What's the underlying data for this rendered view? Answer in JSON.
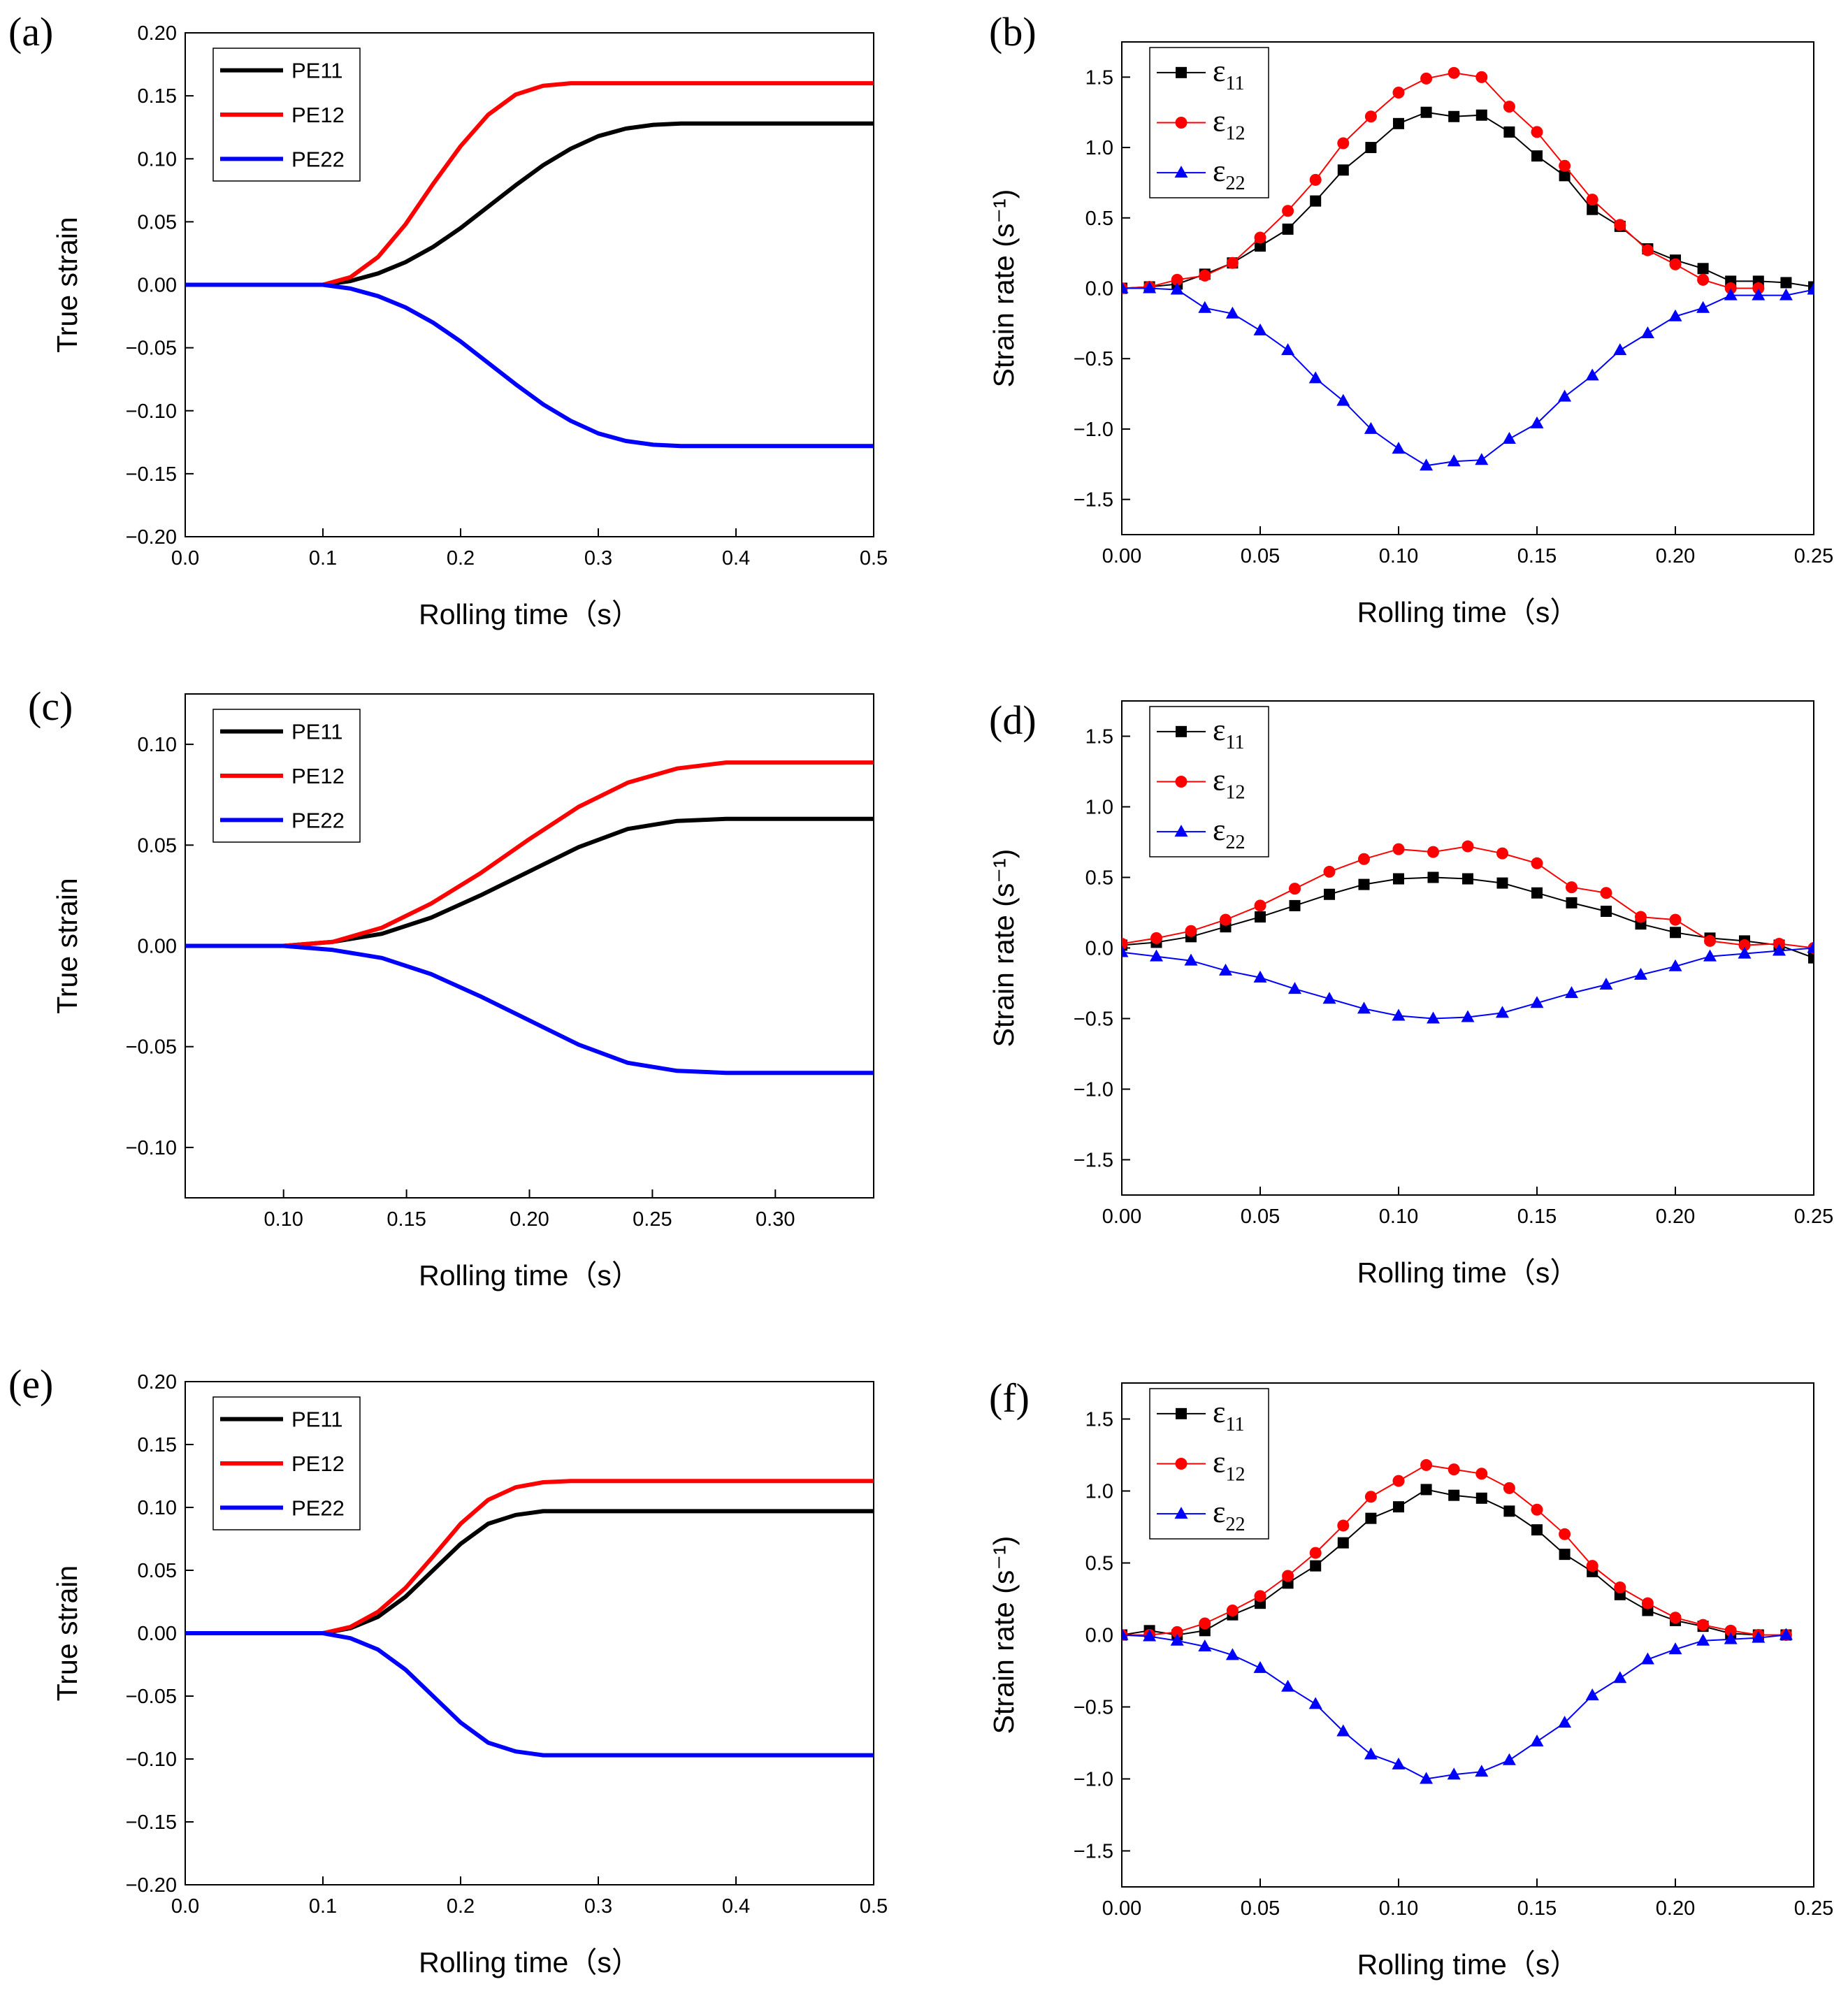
{
  "colors": {
    "e11": "#000000",
    "e12": "#ff0000",
    "e22": "#0000ff"
  },
  "chart_data": [
    {
      "panel": "(a)",
      "type": "line",
      "xlabel": "Rolling time（s）",
      "ylabel": "True strain",
      "xlim": [
        0,
        0.5
      ],
      "ylim": [
        -0.2,
        0.2
      ],
      "xticks": [
        "0.0",
        "0.1",
        "0.2",
        "0.3",
        "0.4",
        "0.5"
      ],
      "yticks": [
        "−0.20",
        "−0.15",
        "−0.10",
        "−0.05",
        "0.00",
        "0.05",
        "0.10",
        "0.15",
        "0.20"
      ],
      "legend": "top-left",
      "series": [
        {
          "name": "PE11",
          "color_key": "e11",
          "x": [
            0,
            0.1,
            0.12,
            0.14,
            0.16,
            0.18,
            0.2,
            0.22,
            0.24,
            0.26,
            0.28,
            0.3,
            0.32,
            0.34,
            0.36,
            0.5
          ],
          "values": [
            0,
            0,
            0.003,
            0.009,
            0.018,
            0.03,
            0.045,
            0.062,
            0.079,
            0.095,
            0.108,
            0.118,
            0.124,
            0.127,
            0.128,
            0.128
          ]
        },
        {
          "name": "PE12",
          "color_key": "e12",
          "x": [
            0,
            0.1,
            0.12,
            0.14,
            0.16,
            0.18,
            0.2,
            0.22,
            0.24,
            0.26,
            0.28,
            0.3,
            0.32,
            0.5
          ],
          "values": [
            0,
            0,
            0.006,
            0.022,
            0.048,
            0.08,
            0.11,
            0.135,
            0.151,
            0.158,
            0.16,
            0.16,
            0.16,
            0.16
          ]
        },
        {
          "name": "PE22",
          "color_key": "e22",
          "x": [
            0,
            0.1,
            0.12,
            0.14,
            0.16,
            0.18,
            0.2,
            0.22,
            0.24,
            0.26,
            0.28,
            0.3,
            0.32,
            0.34,
            0.36,
            0.5
          ],
          "values": [
            0,
            0,
            -0.003,
            -0.009,
            -0.018,
            -0.03,
            -0.045,
            -0.062,
            -0.079,
            -0.095,
            -0.108,
            -0.118,
            -0.124,
            -0.127,
            -0.128,
            -0.128
          ]
        }
      ]
    },
    {
      "panel": "(b)",
      "type": "line",
      "xlabel": "Rolling time（s）",
      "ylabel": "Strain rate (s⁻¹)",
      "xlim": [
        0,
        0.25
      ],
      "ylim": [
        -1.75,
        1.75
      ],
      "xticks": [
        "0.00",
        "0.05",
        "0.10",
        "0.15",
        "0.20",
        "0.25"
      ],
      "yticks": [
        "−1.5",
        "−1.0",
        "−0.5",
        "0.0",
        "0.5",
        "1.0",
        "1.5"
      ],
      "legend": "top-left",
      "series": [
        {
          "name": "ε",
          "sub": "11",
          "marker": "square",
          "color_key": "e11",
          "x": [
            0,
            0.01,
            0.02,
            0.03,
            0.04,
            0.05,
            0.06,
            0.07,
            0.08,
            0.09,
            0.1,
            0.11,
            0.12,
            0.13,
            0.14,
            0.15,
            0.16,
            0.17,
            0.18,
            0.19,
            0.2,
            0.21,
            0.22,
            0.23,
            0.24,
            0.25
          ],
          "values": [
            0,
            0.01,
            0.03,
            0.1,
            0.18,
            0.3,
            0.42,
            0.62,
            0.84,
            1.0,
            1.17,
            1.25,
            1.22,
            1.23,
            1.11,
            0.94,
            0.8,
            0.56,
            0.44,
            0.28,
            0.2,
            0.14,
            0.05,
            0.05,
            0.04,
            0.01
          ]
        },
        {
          "name": "ε",
          "sub": "12",
          "marker": "circle",
          "color_key": "e12",
          "x": [
            0,
            0.01,
            0.02,
            0.03,
            0.04,
            0.05,
            0.06,
            0.07,
            0.08,
            0.09,
            0.1,
            0.11,
            0.12,
            0.13,
            0.14,
            0.15,
            0.16,
            0.17,
            0.18,
            0.19,
            0.2,
            0.21,
            0.22,
            0.23
          ],
          "values": [
            0,
            0.01,
            0.06,
            0.09,
            0.18,
            0.36,
            0.55,
            0.77,
            1.03,
            1.22,
            1.39,
            1.49,
            1.53,
            1.5,
            1.29,
            1.11,
            0.87,
            0.63,
            0.45,
            0.27,
            0.17,
            0.06,
            0.0,
            0.0
          ]
        },
        {
          "name": "ε",
          "sub": "22",
          "marker": "triangle",
          "color_key": "e22",
          "x": [
            0,
            0.01,
            0.02,
            0.03,
            0.04,
            0.05,
            0.06,
            0.07,
            0.08,
            0.09,
            0.1,
            0.11,
            0.12,
            0.13,
            0.14,
            0.15,
            0.16,
            0.17,
            0.18,
            0.19,
            0.2,
            0.21,
            0.22,
            0.23,
            0.24,
            0.25
          ],
          "values": [
            0,
            0,
            -0.01,
            -0.14,
            -0.18,
            -0.3,
            -0.44,
            -0.64,
            -0.8,
            -1.0,
            -1.14,
            -1.26,
            -1.23,
            -1.22,
            -1.07,
            -0.96,
            -0.77,
            -0.62,
            -0.44,
            -0.32,
            -0.2,
            -0.14,
            -0.05,
            -0.05,
            -0.05,
            -0.01
          ]
        }
      ]
    },
    {
      "panel": "(c)",
      "type": "line",
      "xlabel": "Rolling time（s）",
      "ylabel": "True strain",
      "xlim": [
        0.06,
        0.34
      ],
      "ylim": [
        -0.125,
        0.125
      ],
      "xticks": [
        "0.10",
        "0.15",
        "0.20",
        "0.25",
        "0.30"
      ],
      "xtick_values": [
        0.1,
        0.15,
        0.2,
        0.25,
        0.3
      ],
      "yticks": [
        "−0.10",
        "−0.05",
        "0.00",
        "0.05",
        "0.10"
      ],
      "ytick_values": [
        -0.1,
        -0.05,
        0,
        0.05,
        0.1
      ],
      "legend": "top-left",
      "series": [
        {
          "name": "PE11",
          "color_key": "e11",
          "x": [
            0.06,
            0.1,
            0.12,
            0.14,
            0.16,
            0.18,
            0.2,
            0.22,
            0.24,
            0.26,
            0.28,
            0.3,
            0.34
          ],
          "values": [
            0,
            0,
            0.002,
            0.006,
            0.014,
            0.025,
            0.037,
            0.049,
            0.058,
            0.062,
            0.063,
            0.063,
            0.063
          ]
        },
        {
          "name": "PE12",
          "color_key": "e12",
          "x": [
            0.06,
            0.1,
            0.12,
            0.14,
            0.16,
            0.18,
            0.2,
            0.22,
            0.24,
            0.26,
            0.28,
            0.3,
            0.34
          ],
          "values": [
            0,
            0,
            0.002,
            0.009,
            0.021,
            0.036,
            0.053,
            0.069,
            0.081,
            0.088,
            0.091,
            0.091,
            0.091
          ]
        },
        {
          "name": "PE22",
          "color_key": "e22",
          "x": [
            0.06,
            0.1,
            0.12,
            0.14,
            0.16,
            0.18,
            0.2,
            0.22,
            0.24,
            0.26,
            0.28,
            0.3,
            0.34
          ],
          "values": [
            0,
            0,
            -0.002,
            -0.006,
            -0.014,
            -0.025,
            -0.037,
            -0.049,
            -0.058,
            -0.062,
            -0.063,
            -0.063,
            -0.063
          ]
        }
      ]
    },
    {
      "panel": "(d)",
      "type": "line",
      "xlabel": "Rolling time（s）",
      "ylabel": "Strain rate (s⁻¹)",
      "xlim": [
        0,
        0.25
      ],
      "ylim": [
        -1.75,
        1.75
      ],
      "xticks": [
        "0.00",
        "0.05",
        "0.10",
        "0.15",
        "0.20",
        "0.25"
      ],
      "yticks": [
        "−1.5",
        "−1.0",
        "−0.5",
        "0.0",
        "0.5",
        "1.0",
        "1.5"
      ],
      "legend": "top-left",
      "series": [
        {
          "name": "ε",
          "sub": "11",
          "marker": "square",
          "color_key": "e11",
          "x": [
            0,
            0.0125,
            0.025,
            0.0375,
            0.05,
            0.0625,
            0.075,
            0.0875,
            0.1,
            0.1125,
            0.125,
            0.1375,
            0.15,
            0.1625,
            0.175,
            0.1875,
            0.2,
            0.2125,
            0.225,
            0.2375,
            0.25
          ],
          "values": [
            0.02,
            0.04,
            0.08,
            0.15,
            0.22,
            0.3,
            0.38,
            0.45,
            0.49,
            0.5,
            0.49,
            0.46,
            0.39,
            0.32,
            0.26,
            0.17,
            0.11,
            0.07,
            0.05,
            0.02,
            -0.07
          ]
        },
        {
          "name": "ε",
          "sub": "12",
          "marker": "circle",
          "color_key": "e12",
          "x": [
            0,
            0.0125,
            0.025,
            0.0375,
            0.05,
            0.0625,
            0.075,
            0.0875,
            0.1,
            0.1125,
            0.125,
            0.1375,
            0.15,
            0.1625,
            0.175,
            0.1875,
            0.2,
            0.2125,
            0.225,
            0.2375,
            0.25
          ],
          "values": [
            0.03,
            0.07,
            0.12,
            0.2,
            0.3,
            0.42,
            0.54,
            0.63,
            0.7,
            0.68,
            0.72,
            0.67,
            0.6,
            0.43,
            0.39,
            0.22,
            0.2,
            0.05,
            0.02,
            0.03,
            0.0
          ]
        },
        {
          "name": "ε",
          "sub": "22",
          "marker": "triangle",
          "color_key": "e22",
          "x": [
            0,
            0.0125,
            0.025,
            0.0375,
            0.05,
            0.0625,
            0.075,
            0.0875,
            0.1,
            0.1125,
            0.125,
            0.1375,
            0.15,
            0.1625,
            0.175,
            0.1875,
            0.2,
            0.2125,
            0.225,
            0.2375,
            0.25
          ],
          "values": [
            -0.03,
            -0.06,
            -0.09,
            -0.16,
            -0.21,
            -0.29,
            -0.36,
            -0.43,
            -0.48,
            -0.5,
            -0.49,
            -0.46,
            -0.39,
            -0.32,
            -0.26,
            -0.19,
            -0.13,
            -0.06,
            -0.04,
            -0.02,
            0.0
          ]
        }
      ]
    },
    {
      "panel": "(e)",
      "type": "line",
      "xlabel": "Rolling time（s）",
      "ylabel": "True strain",
      "xlim": [
        0,
        0.5
      ],
      "ylim": [
        -0.2,
        0.2
      ],
      "xticks": [
        "0.0",
        "0.1",
        "0.2",
        "0.3",
        "0.4",
        "0.5"
      ],
      "yticks": [
        "−0.20",
        "−0.15",
        "−0.10",
        "−0.05",
        "0.00",
        "0.05",
        "0.10",
        "0.15",
        "0.20"
      ],
      "legend": "top-left",
      "series": [
        {
          "name": "PE11",
          "color_key": "e11",
          "x": [
            0,
            0.1,
            0.12,
            0.14,
            0.16,
            0.18,
            0.2,
            0.22,
            0.24,
            0.26,
            0.28,
            0.3,
            0.5
          ],
          "values": [
            0,
            0,
            0.004,
            0.013,
            0.029,
            0.05,
            0.071,
            0.087,
            0.094,
            0.097,
            0.097,
            0.097,
            0.097
          ]
        },
        {
          "name": "PE12",
          "color_key": "e12",
          "x": [
            0,
            0.1,
            0.12,
            0.14,
            0.16,
            0.18,
            0.2,
            0.22,
            0.24,
            0.26,
            0.28,
            0.3,
            0.5
          ],
          "values": [
            0,
            0,
            0.005,
            0.017,
            0.036,
            0.061,
            0.087,
            0.106,
            0.116,
            0.12,
            0.121,
            0.121,
            0.121
          ]
        },
        {
          "name": "PE22",
          "color_key": "e22",
          "x": [
            0,
            0.1,
            0.12,
            0.14,
            0.16,
            0.18,
            0.2,
            0.22,
            0.24,
            0.26,
            0.28,
            0.3,
            0.5
          ],
          "values": [
            0,
            0,
            -0.004,
            -0.013,
            -0.029,
            -0.05,
            -0.071,
            -0.087,
            -0.094,
            -0.097,
            -0.097,
            -0.097,
            -0.097
          ]
        }
      ]
    },
    {
      "panel": "(f)",
      "type": "line",
      "xlabel": "Rolling time（s）",
      "ylabel": "Strain rate (s⁻¹)",
      "xlim": [
        0,
        0.25
      ],
      "ylim": [
        -1.75,
        1.75
      ],
      "xticks": [
        "0.00",
        "0.05",
        "0.10",
        "0.15",
        "0.20",
        "0.25"
      ],
      "yticks": [
        "−1.5",
        "−1.0",
        "−0.5",
        "0.0",
        "0.5",
        "1.0",
        "1.5"
      ],
      "legend": "top-left",
      "series": [
        {
          "name": "ε",
          "sub": "11",
          "marker": "square",
          "color_key": "e11",
          "x": [
            0,
            0.01,
            0.02,
            0.03,
            0.04,
            0.05,
            0.06,
            0.07,
            0.08,
            0.09,
            0.1,
            0.11,
            0.12,
            0.13,
            0.14,
            0.15,
            0.16,
            0.17,
            0.18,
            0.19,
            0.2,
            0.21,
            0.22,
            0.23,
            0.24
          ],
          "values": [
            0,
            0.03,
            0.0,
            0.03,
            0.14,
            0.22,
            0.36,
            0.48,
            0.64,
            0.81,
            0.89,
            1.01,
            0.97,
            0.95,
            0.86,
            0.73,
            0.56,
            0.44,
            0.28,
            0.17,
            0.1,
            0.06,
            0.01,
            0.0,
            0.0
          ]
        },
        {
          "name": "ε",
          "sub": "12",
          "marker": "circle",
          "color_key": "e12",
          "x": [
            0,
            0.01,
            0.02,
            0.03,
            0.04,
            0.05,
            0.06,
            0.07,
            0.08,
            0.09,
            0.1,
            0.11,
            0.12,
            0.13,
            0.14,
            0.15,
            0.16,
            0.17,
            0.18,
            0.19,
            0.2,
            0.21,
            0.22,
            0.23,
            0.24
          ],
          "values": [
            0,
            0.0,
            0.02,
            0.08,
            0.17,
            0.27,
            0.41,
            0.57,
            0.76,
            0.96,
            1.07,
            1.18,
            1.15,
            1.12,
            1.02,
            0.87,
            0.7,
            0.48,
            0.33,
            0.22,
            0.12,
            0.07,
            0.03,
            0.0,
            0.0
          ]
        },
        {
          "name": "ε",
          "sub": "22",
          "marker": "triangle",
          "color_key": "e22",
          "x": [
            0,
            0.01,
            0.02,
            0.03,
            0.04,
            0.05,
            0.06,
            0.07,
            0.08,
            0.09,
            0.1,
            0.11,
            0.12,
            0.13,
            0.14,
            0.15,
            0.16,
            0.17,
            0.18,
            0.19,
            0.2,
            0.21,
            0.22,
            0.23,
            0.24
          ],
          "values": [
            0,
            -0.01,
            -0.04,
            -0.08,
            -0.14,
            -0.23,
            -0.36,
            -0.48,
            -0.67,
            -0.83,
            -0.9,
            -1.0,
            -0.97,
            -0.95,
            -0.87,
            -0.74,
            -0.61,
            -0.42,
            -0.3,
            -0.17,
            -0.1,
            -0.04,
            -0.03,
            -0.02,
            0.0
          ]
        }
      ]
    }
  ]
}
